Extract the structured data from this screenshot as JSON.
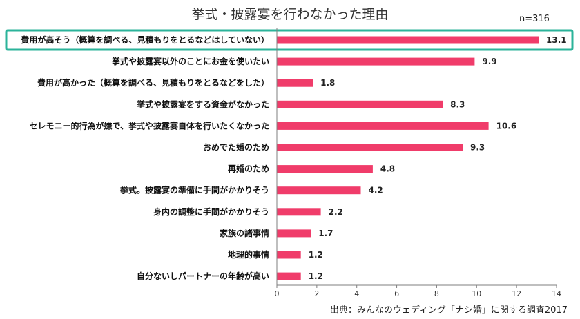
{
  "chart_data": {
    "type": "bar",
    "orientation": "horizontal",
    "title": "挙式・披露宴を行わなかった理由",
    "sample_size": "n=316",
    "source": "出典：みんなのウェディング「ナシ婚」に関する調査2017",
    "categories": [
      "費用が高そう（概算を調べる、見積もりをとるなどはしていない）",
      "挙式や披露宴以外のことにお金を使いたい",
      "費用が高かった（概算を調べる、見積もりをとるなどをした）",
      "挙式や披露宴をする資金がなかった",
      "セレモニー的行為が嫌で、挙式や披露宴自体を行いたくなかった",
      "おめでた婚のため",
      "再婚のため",
      "挙式。披露宴の準備に手間がかかりそう",
      "身内の調整に手間がかかりそう",
      "家族の諸事情",
      "地理的事情",
      "自分ないしパートナーの年齢が高い"
    ],
    "values": [
      13.1,
      9.9,
      1.8,
      8.3,
      10.6,
      9.3,
      4.8,
      4.2,
      2.2,
      1.7,
      1.2,
      1.2
    ],
    "value_labels": [
      "13.1",
      "9.9",
      "1.8",
      "8.3",
      "10.6",
      "9.3",
      "4.8",
      "4.2",
      "2.2",
      "1.7",
      "1.2",
      "1.2"
    ],
    "xlim": [
      0,
      14
    ],
    "xticks": [
      0,
      2,
      4,
      6,
      8,
      10,
      12,
      14
    ],
    "xtick_labels": [
      "0",
      "2",
      "4",
      "6",
      "8",
      "10",
      "12",
      "14"
    ],
    "highlighted_index": 0,
    "grid": false,
    "colors": {
      "bar": "#f03c6a",
      "highlight_box": "#2bb39a",
      "axis": "#7f7f7f"
    }
  }
}
